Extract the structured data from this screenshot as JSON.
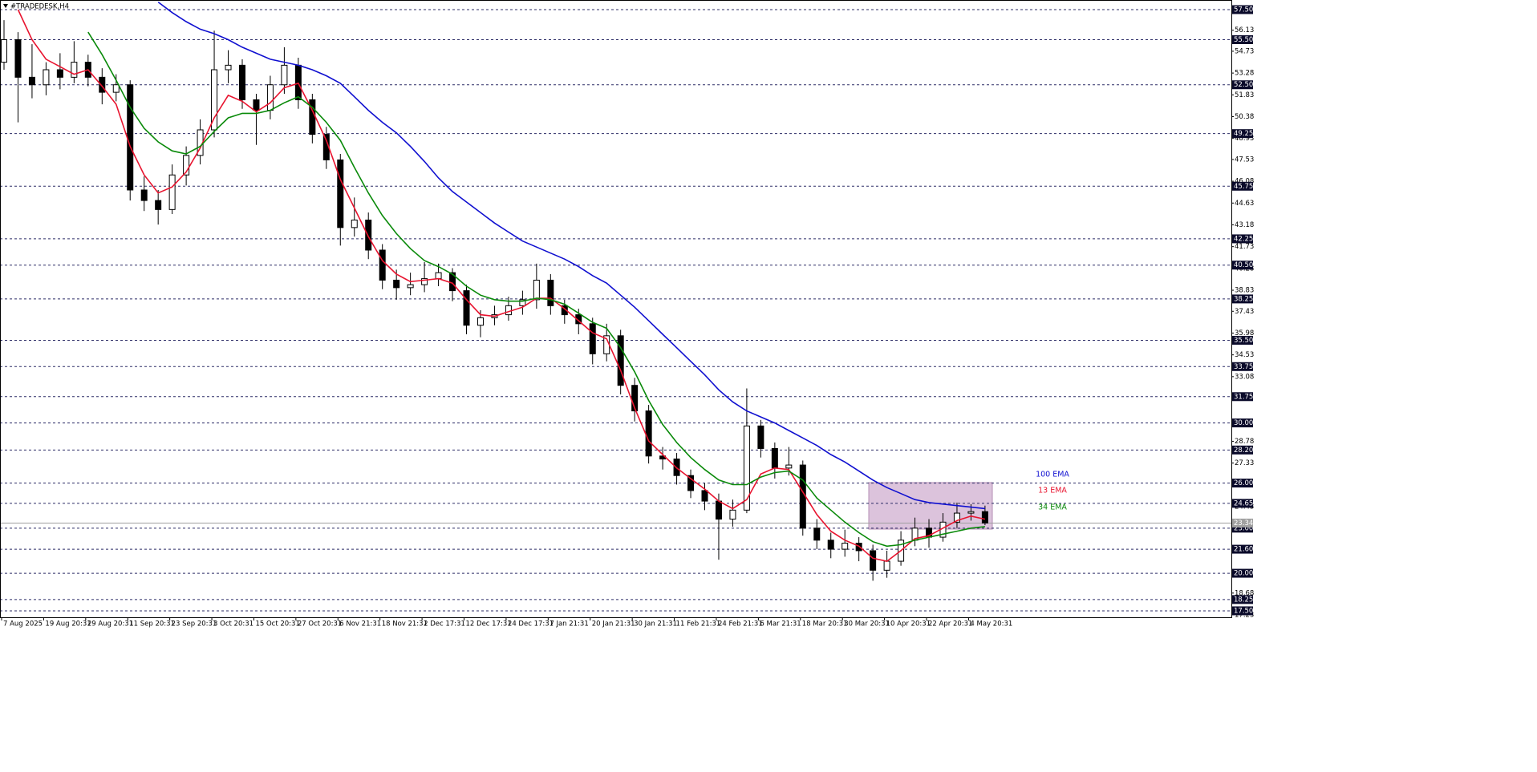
{
  "chart_data": {
    "type": "candlestick",
    "title": "#TRADEDESK,H4",
    "categories": [
      "7 Aug 2025",
      null,
      null,
      "19 Aug 20:31",
      null,
      null,
      "29 Aug 20:31",
      null,
      null,
      "11 Sep 20:31",
      null,
      null,
      "23 Sep 20:31",
      null,
      null,
      "3 Oct 20:31",
      null,
      null,
      "15 Oct 20:31",
      null,
      null,
      "27 Oct 20:31",
      null,
      null,
      "6 Nov 21:31",
      null,
      null,
      "18 Nov 21:31",
      null,
      null,
      "2 Dec 17:31",
      null,
      null,
      "12 Dec 17:31",
      null,
      null,
      "24 Dec 17:31",
      null,
      null,
      "7 Jan 21:31",
      null,
      null,
      "20 Jan 21:31",
      null,
      null,
      "30 Jan 21:31",
      null,
      null,
      "11 Feb 21:31",
      null,
      null,
      "24 Feb 21:31",
      null,
      null,
      "6 Mar 21:31",
      null,
      null,
      "18 Mar 20:31",
      null,
      null,
      "30 Mar 20:31",
      null,
      null,
      "10 Apr 20:31",
      null,
      null,
      "22 Apr 20:31",
      null,
      null,
      "4 May 20:31",
      null
    ],
    "open": [
      54,
      55.5,
      53,
      52.5,
      53.5,
      53,
      54,
      53,
      52,
      52.5,
      45.5,
      44.8,
      44.2,
      46.5,
      47.8,
      49.5,
      53.5,
      53.8,
      51.5,
      50.8,
      52.5,
      53.8,
      51.5,
      49.2,
      47.5,
      43,
      43.5,
      41.5,
      39.5,
      39,
      39.2,
      39.6,
      40,
      38.8,
      36.5,
      37,
      37.2,
      37.8,
      38.2,
      39.5,
      37.8,
      37.2,
      36.6,
      34.6,
      35.8,
      32.5,
      30.8,
      27.8,
      27.6,
      26.5,
      25.5,
      24.8,
      23.6,
      24.2,
      29.8,
      28.3,
      27,
      27.2,
      23,
      22.2,
      21.6,
      22,
      21.5,
      20.2,
      20.8,
      22.2,
      23,
      22.4,
      23.4,
      24,
      24.1
    ],
    "high": [
      56.8,
      56,
      55.2,
      54,
      54.6,
      55.4,
      54.5,
      53.6,
      53.2,
      52.8,
      46.4,
      45.5,
      47.2,
      48.4,
      50.2,
      56.1,
      54.8,
      54.2,
      51.9,
      53.1,
      55,
      54.3,
      51.9,
      49.7,
      47.9,
      45,
      44,
      41.9,
      40.2,
      40,
      40.7,
      40.6,
      40.3,
      39.2,
      37.5,
      37.8,
      38.4,
      38.8,
      40.6,
      39.9,
      38.2,
      37.6,
      37,
      36.6,
      36.2,
      33,
      31.2,
      28.4,
      28,
      26.9,
      26,
      25.3,
      24.9,
      32.3,
      30.2,
      28.7,
      28.4,
      27.5,
      23.6,
      22.7,
      22.9,
      22.4,
      21.9,
      21.5,
      22.8,
      23.7,
      23.6,
      24,
      24.7,
      24.6,
      24.5
    ],
    "low": [
      53.5,
      50,
      51.6,
      51.8,
      52.2,
      52.6,
      52.4,
      51.2,
      51.4,
      44.8,
      44.1,
      43.2,
      43.9,
      45.8,
      47.2,
      49,
      52.6,
      50.9,
      48.5,
      50.2,
      51.9,
      50.9,
      48.6,
      46.9,
      41.8,
      42.4,
      40.9,
      38.9,
      38.2,
      38.5,
      38.7,
      39.1,
      38.1,
      35.9,
      35.7,
      36.5,
      36.8,
      37.2,
      37.6,
      37.2,
      36.6,
      35.9,
      33.9,
      34.1,
      31.9,
      30.1,
      27.3,
      26.9,
      25.9,
      25,
      24.2,
      20.9,
      23.1,
      24,
      27.7,
      26.3,
      26.5,
      22.5,
      21.6,
      21,
      21.1,
      20.8,
      19.5,
      19.7,
      20.5,
      21.8,
      21.7,
      22.1,
      23,
      23.5,
      23.2
    ],
    "close": [
      55.5,
      53,
      52.5,
      53.5,
      53,
      54,
      53,
      52,
      52.5,
      45.5,
      44.8,
      44.2,
      46.5,
      47.8,
      49.5,
      53.5,
      53.8,
      51.5,
      50.8,
      52.5,
      53.8,
      51.5,
      49.2,
      47.5,
      43,
      43.5,
      41.5,
      39.5,
      39,
      39.2,
      39.6,
      40,
      38.8,
      36.5,
      37,
      37.2,
      37.8,
      38.2,
      39.5,
      37.8,
      37.2,
      36.6,
      34.6,
      35.8,
      32.5,
      30.8,
      27.8,
      27.6,
      26.5,
      25.5,
      24.8,
      23.6,
      24.2,
      29.8,
      28.3,
      27,
      27.2,
      23,
      22.2,
      21.6,
      22,
      21.5,
      20.2,
      20.8,
      22.2,
      23,
      22.4,
      23.4,
      24,
      24.1,
      23.34
    ],
    "series": [
      {
        "name": "13 EMA",
        "color": "#e8142f",
        "values": [
          null,
          57.5,
          55.5,
          54.2,
          53.7,
          53.2,
          53.5,
          52.4,
          51.2,
          48.4,
          46.5,
          45.3,
          45.7,
          46.7,
          48.3,
          50.3,
          51.8,
          51.4,
          50.7,
          51.3,
          52.3,
          52.6,
          50.8,
          48.8,
          46.2,
          44.3,
          42.4,
          40.8,
          39.9,
          39.4,
          39.5,
          39.6,
          39.3,
          38.2,
          37.2,
          37.1,
          37.4,
          37.7,
          38.3,
          38.3,
          37.6,
          36.8,
          36,
          35.6,
          33.5,
          31,
          28.8,
          27.9,
          27,
          26.3,
          25.6,
          24.8,
          24.3,
          24.9,
          26.6,
          27,
          26.9,
          25.4,
          23.9,
          22.8,
          22.2,
          21.8,
          21,
          20.8,
          21.5,
          22.3,
          22.5,
          23,
          23.5,
          23.8,
          23.6
        ]
      },
      {
        "name": "34 EMA",
        "color": "#0a8a0a",
        "values": [
          null,
          null,
          null,
          null,
          null,
          null,
          56,
          54.5,
          52.8,
          51,
          49.6,
          48.7,
          48.1,
          47.9,
          48.4,
          49.4,
          50.3,
          50.6,
          50.6,
          50.8,
          51.3,
          51.7,
          51,
          50,
          48.8,
          47,
          45.3,
          43.8,
          42.6,
          41.6,
          40.8,
          40.4,
          39.9,
          39.1,
          38.5,
          38.2,
          38.1,
          38.1,
          38.3,
          38.2,
          37.9,
          37.3,
          36.7,
          36.3,
          35,
          33.4,
          31.5,
          29.9,
          28.7,
          27.7,
          26.9,
          26.2,
          25.9,
          25.9,
          26.4,
          26.7,
          26.8,
          26.2,
          25,
          24.2,
          23.4,
          22.7,
          22.1,
          21.8,
          21.9,
          22.2,
          22.4,
          22.6,
          22.8,
          23,
          23.1
        ]
      },
      {
        "name": "100 EMA",
        "color": "#1010d0",
        "values": [
          null,
          null,
          null,
          null,
          null,
          null,
          null,
          null,
          null,
          null,
          null,
          58,
          57.3,
          56.7,
          56.2,
          55.9,
          55.5,
          55,
          54.6,
          54.2,
          54,
          53.8,
          53.5,
          53.1,
          52.6,
          51.7,
          50.8,
          50,
          49.3,
          48.4,
          47.4,
          46.3,
          45.4,
          44.7,
          44,
          43.3,
          42.7,
          42.1,
          41.7,
          41.3,
          40.9,
          40.4,
          39.8,
          39.3,
          38.5,
          37.7,
          36.8,
          35.9,
          35,
          34.1,
          33.2,
          32.2,
          31.4,
          30.8,
          30.4,
          30,
          29.5,
          29,
          28.5,
          27.9,
          27.4,
          26.8,
          26.2,
          25.7,
          25.3,
          24.9,
          24.7,
          24.6,
          24.5,
          24.4,
          24.3
        ]
      }
    ],
    "ylim": [
      17.07,
      58.14
    ],
    "yticks": [
      56.13,
      54.73,
      53.28,
      51.83,
      50.38,
      48.93,
      47.53,
      46.08,
      44.63,
      43.18,
      41.73,
      40.28,
      38.83,
      37.43,
      35.98,
      34.53,
      33.08,
      28.78,
      27.33,
      24.43,
      18.68,
      17.23
    ],
    "levels": [
      {
        "value": 57.5,
        "label": "57.50"
      },
      {
        "value": 55.5,
        "label": "55.50"
      },
      {
        "value": 52.5,
        "label": "52.50"
      },
      {
        "value": 49.25,
        "label": "49.25"
      },
      {
        "value": 45.75,
        "label": "45.75"
      },
      {
        "value": 42.25,
        "label": "42.25"
      },
      {
        "value": 40.5,
        "label": "40.50"
      },
      {
        "value": 38.25,
        "label": "38.25"
      },
      {
        "value": 35.5,
        "label": "35.50"
      },
      {
        "value": 33.75,
        "label": "33.75"
      },
      {
        "value": 31.75,
        "label": "31.75"
      },
      {
        "value": 30,
        "label": "30.00"
      },
      {
        "value": 28.2,
        "label": "28.20"
      },
      {
        "value": 26,
        "label": "26.00"
      },
      {
        "value": 24.65,
        "label": "24.65"
      },
      {
        "value": 23,
        "label": "23.00"
      },
      {
        "value": 21.6,
        "label": "21.60"
      },
      {
        "value": 20,
        "label": "20.00"
      },
      {
        "value": 18.25,
        "label": "18.25"
      },
      {
        "value": 17.5,
        "label": "17.50"
      }
    ],
    "current_price": 23.34
  }
}
